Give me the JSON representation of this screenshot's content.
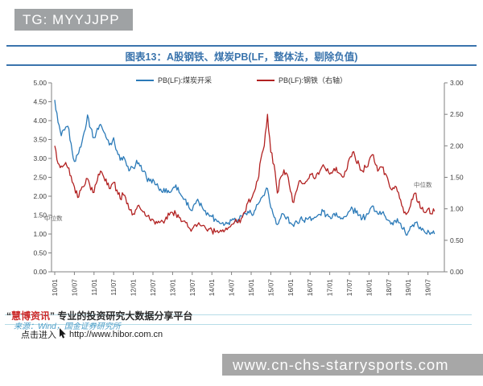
{
  "watermarks": {
    "tg_label": "TG: MYYJJPP",
    "site_url": "www.cn-chs-starrysports.com"
  },
  "figure": {
    "title": "图表13：A股钢铁、煤炭PB(LF，整体法，剔除负值)",
    "accent_color": "#3a74ad"
  },
  "footer": {
    "quote_open": "“",
    "brand": "慧博资讯",
    "quote_close": "”",
    "tagline": "专业的投资研究大数据分享平台",
    "source_line": "来源：Wind，国金证券研究所",
    "click_label": "点击进入",
    "url": "http://www.hibor.com.cn"
  },
  "chart_data": {
    "type": "line",
    "title": "图表13：A股钢铁、煤炭PB(LF，整体法，剔除负值)",
    "grid": false,
    "legend_position": "top",
    "x_frequency": "monthly, ticks every 6 months",
    "x_tick_labels": [
      "10/01",
      "10/07",
      "11/01",
      "11/07",
      "12/01",
      "12/07",
      "13/01",
      "13/07",
      "14/01",
      "14/07",
      "15/01",
      "15/07",
      "16/01",
      "16/07",
      "17/01",
      "17/07",
      "18/01",
      "18/07",
      "19/01",
      "19/07"
    ],
    "left_axis": {
      "min": 0,
      "max": 5,
      "step": 0.5
    },
    "right_axis": {
      "min": 0,
      "max": 3,
      "step": 0.5
    },
    "median_label": "中位数",
    "median_level_left": 1.4,
    "median_level_right": 1.37,
    "series": [
      {
        "name": "PB(LF):煤炭开采",
        "axis": "left",
        "color": "#2b7ab8",
        "values": [
          4.55,
          3.95,
          3.6,
          3.75,
          3.85,
          3.4,
          2.92,
          3.1,
          3.3,
          3.7,
          4.15,
          3.8,
          3.55,
          3.8,
          3.9,
          3.7,
          3.5,
          3.4,
          3.55,
          3.2,
          2.95,
          3.05,
          2.8,
          2.7,
          2.75,
          2.95,
          2.8,
          2.65,
          2.5,
          2.4,
          2.45,
          2.3,
          2.15,
          2.1,
          2.2,
          2.1,
          2.2,
          2.3,
          2.1,
          1.98,
          1.92,
          1.7,
          1.62,
          1.8,
          1.85,
          1.72,
          1.62,
          1.52,
          1.46,
          1.4,
          1.34,
          1.28,
          1.26,
          1.3,
          1.36,
          1.42,
          1.38,
          1.48,
          1.55,
          1.6,
          1.55,
          1.62,
          1.78,
          1.95,
          2.02,
          2.2,
          1.7,
          1.45,
          1.25,
          1.42,
          1.52,
          1.45,
          1.3,
          1.2,
          1.32,
          1.4,
          1.36,
          1.4,
          1.46,
          1.4,
          1.46,
          1.52,
          1.6,
          1.5,
          1.46,
          1.52,
          1.56,
          1.46,
          1.4,
          1.46,
          1.6,
          1.66,
          1.56,
          1.5,
          1.42,
          1.46,
          1.56,
          1.74,
          1.6,
          1.52,
          1.56,
          1.46,
          1.36,
          1.3,
          1.36,
          1.3,
          1.15,
          1.06,
          1.06,
          1.2,
          1.3,
          1.2,
          1.1,
          1.05,
          1.1,
          1.04,
          1.0
        ]
      },
      {
        "name": "PB(LF):钢铁（右轴）",
        "axis": "right",
        "color": "#b22222",
        "values": [
          2.0,
          1.72,
          1.68,
          1.7,
          1.65,
          1.52,
          1.35,
          1.18,
          1.3,
          1.36,
          1.48,
          1.3,
          1.26,
          1.45,
          1.6,
          1.5,
          1.38,
          1.32,
          1.42,
          1.3,
          1.16,
          1.22,
          1.08,
          0.98,
          0.92,
          1.0,
          1.02,
          0.95,
          0.88,
          0.84,
          0.83,
          0.8,
          0.78,
          0.8,
          0.87,
          0.9,
          0.94,
          0.92,
          0.86,
          0.8,
          0.78,
          0.7,
          0.68,
          0.75,
          0.78,
          0.73,
          0.7,
          0.68,
          0.66,
          0.63,
          0.62,
          0.64,
          0.66,
          0.7,
          0.75,
          0.8,
          0.78,
          0.85,
          0.95,
          1.1,
          1.15,
          1.28,
          1.45,
          1.8,
          2.0,
          2.5,
          1.9,
          1.7,
          1.25,
          1.5,
          1.62,
          1.55,
          1.28,
          1.1,
          1.3,
          1.45,
          1.4,
          1.44,
          1.55,
          1.5,
          1.55,
          1.6,
          1.7,
          1.6,
          1.55,
          1.6,
          1.66,
          1.56,
          1.5,
          1.6,
          1.8,
          1.9,
          1.76,
          1.7,
          1.6,
          1.66,
          1.76,
          1.86,
          1.7,
          1.62,
          1.66,
          1.56,
          1.42,
          1.3,
          1.36,
          1.26,
          1.05,
          0.95,
          0.95,
          1.15,
          1.25,
          1.1,
          1.0,
          0.94,
          1.0,
          0.92,
          0.96
        ]
      }
    ]
  }
}
